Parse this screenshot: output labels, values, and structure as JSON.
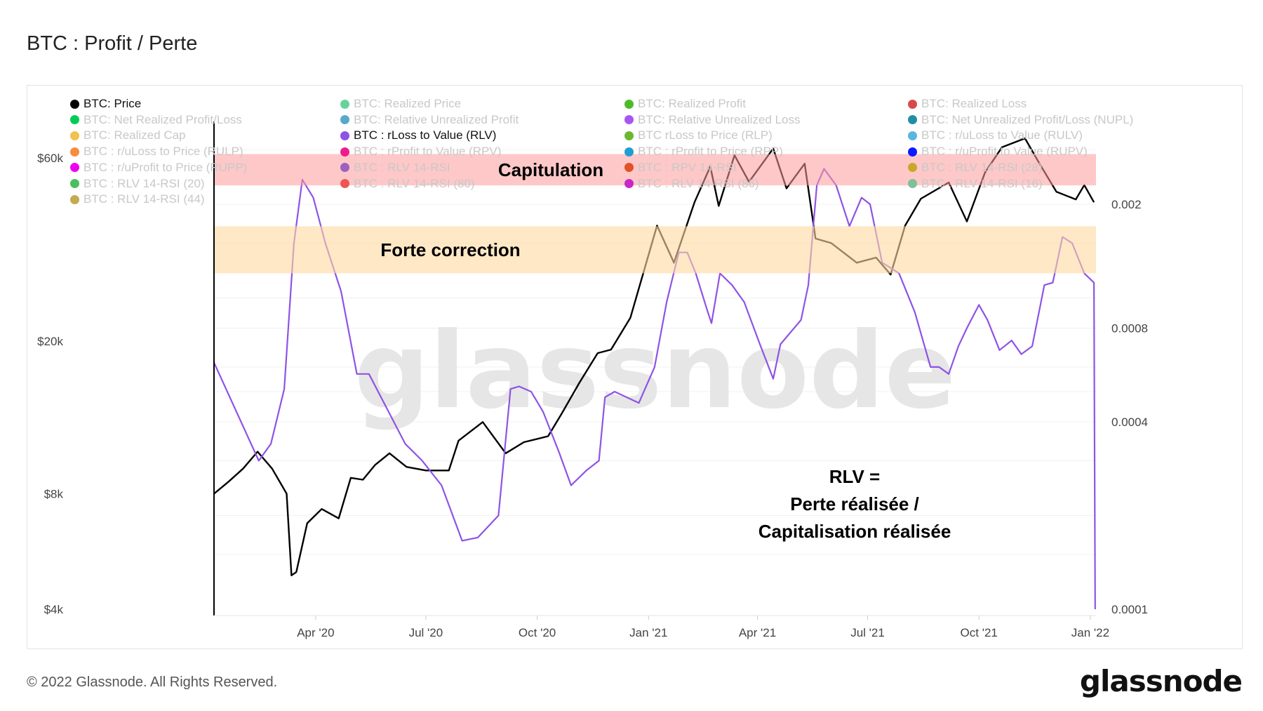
{
  "title": "BTC : Profit / Perte",
  "footer": "© 2022 Glassnode. All Rights Reserved.",
  "logo": "glassnode",
  "watermark": "glassnode",
  "legend": [
    {
      "label": "BTC: Price",
      "color": "#000000",
      "active": true
    },
    {
      "label": "BTC: Net Realized Profit/Loss",
      "color": "#00cc55",
      "active": false
    },
    {
      "label": "BTC: Realized Cap",
      "color": "#f2c14e",
      "active": false
    },
    {
      "label": "BTC : r/uLoss to Price (RULP)",
      "color": "#f78c40",
      "active": false
    },
    {
      "label": "BTC : r/uProfit to Price (RUPP)",
      "color": "#ee00ee",
      "active": false
    },
    {
      "label": "BTC : RLV 14-RSI (20)",
      "color": "#4dbd5f",
      "active": false
    },
    {
      "label": "BTC : RLV 14-RSI (44)",
      "color": "#c4a951",
      "active": false
    },
    {
      "label": "BTC: Realized Price",
      "color": "#66d39e",
      "active": false
    },
    {
      "label": "BTC: Relative Unrealized Profit",
      "color": "#5aa9c9",
      "active": false
    },
    {
      "label": "BTC : rLoss to Value (RLV)",
      "color": "#8e53e6",
      "active": true
    },
    {
      "label": "BTC : rProfit to Value (RPV)",
      "color": "#ee1d8e",
      "active": false
    },
    {
      "label": "BTC : RLV 14-RSI",
      "color": "#9b62c0",
      "active": false
    },
    {
      "label": "BTC : RLV 14-RSI (80)",
      "color": "#ee5555",
      "active": false
    },
    {
      "label": "BTC: Realized Profit",
      "color": "#4cbb2a",
      "active": false
    },
    {
      "label": "BTC: Relative Unrealized Loss",
      "color": "#a757f0",
      "active": false
    },
    {
      "label": "BTC rLoss to Price (RLP)",
      "color": "#6bb82e",
      "active": false
    },
    {
      "label": "BTC : rProfit to Price (RPP)",
      "color": "#209ed4",
      "active": false
    },
    {
      "label": "BTC : RPV 14-RSI",
      "color": "#e0522a",
      "active": false
    },
    {
      "label": "BTC : RLV 14-RSI (86)",
      "color": "#c828c8",
      "active": false
    },
    {
      "label": "BTC: Realized Loss",
      "color": "#d84a4a",
      "active": false
    },
    {
      "label": "BTC: Net Unrealized Profit/Loss (NUPL)",
      "color": "#228ea6",
      "active": false
    },
    {
      "label": "BTC : r/uLoss to Value (RULV)",
      "color": "#58b6e0",
      "active": false
    },
    {
      "label": "BTC : r/uProfit to Value (RUPV)",
      "color": "#0a1cff",
      "active": false
    },
    {
      "label": "BTC : RLV 14-RSI (28)",
      "color": "#c8a82a",
      "active": false
    },
    {
      "label": "BTC : RLV 14-RSI (16)",
      "color": "#7fbf9a",
      "active": false
    }
  ],
  "chart_data": {
    "type": "line",
    "x_range": [
      "2020-01-08",
      "2022-01-05"
    ],
    "x_ticks": [
      {
        "date": "2020-04-01",
        "label": "Apr '20"
      },
      {
        "date": "2020-07-01",
        "label": "Jul '20"
      },
      {
        "date": "2020-10-01",
        "label": "Oct '20"
      },
      {
        "date": "2021-01-01",
        "label": "Jan '21"
      },
      {
        "date": "2021-04-01",
        "label": "Apr '21"
      },
      {
        "date": "2021-07-01",
        "label": "Jul '21"
      },
      {
        "date": "2021-10-01",
        "label": "Oct '21"
      },
      {
        "date": "2022-01-01",
        "label": "Jan '22"
      }
    ],
    "y_left": {
      "scale": "log",
      "range": [
        4000,
        70000
      ],
      "ticks": [
        {
          "v": 4000,
          "label": "$4k"
        },
        {
          "v": 8000,
          "label": "$8k"
        },
        {
          "v": 20000,
          "label": "$20k"
        },
        {
          "v": 60000,
          "label": "$60k"
        }
      ]
    },
    "y_right": {
      "scale": "log",
      "range": [
        0.0001,
        0.0033
      ],
      "ticks": [
        {
          "v": 0.0001,
          "label": "0.0001"
        },
        {
          "v": 0.0004,
          "label": "0.0004"
        },
        {
          "v": 0.0008,
          "label": "0.0008"
        },
        {
          "v": 0.002,
          "label": "0.002"
        }
      ]
    },
    "grid": true,
    "legend_placement": "top-left",
    "series": [
      {
        "name": "BTC: Price",
        "axis": "left",
        "color": "#000000",
        "points": [
          [
            "2020-01-08",
            8000
          ],
          [
            "2020-01-20",
            8600
          ],
          [
            "2020-02-01",
            9300
          ],
          [
            "2020-02-13",
            10300
          ],
          [
            "2020-02-25",
            9300
          ],
          [
            "2020-03-08",
            8000
          ],
          [
            "2020-03-12",
            4900
          ],
          [
            "2020-03-16",
            5000
          ],
          [
            "2020-03-25",
            6700
          ],
          [
            "2020-04-06",
            7300
          ],
          [
            "2020-04-20",
            6900
          ],
          [
            "2020-04-30",
            8800
          ],
          [
            "2020-05-10",
            8700
          ],
          [
            "2020-05-20",
            9500
          ],
          [
            "2020-06-01",
            10200
          ],
          [
            "2020-06-15",
            9400
          ],
          [
            "2020-07-01",
            9200
          ],
          [
            "2020-07-20",
            9200
          ],
          [
            "2020-07-28",
            11000
          ],
          [
            "2020-08-17",
            12300
          ],
          [
            "2020-09-05",
            10200
          ],
          [
            "2020-09-20",
            10900
          ],
          [
            "2020-10-10",
            11300
          ],
          [
            "2020-10-21",
            12900
          ],
          [
            "2020-11-05",
            15600
          ],
          [
            "2020-11-20",
            18600
          ],
          [
            "2020-12-01",
            19000
          ],
          [
            "2020-12-17",
            23000
          ],
          [
            "2021-01-08",
            40000
          ],
          [
            "2021-01-22",
            32000
          ],
          [
            "2021-02-08",
            46000
          ],
          [
            "2021-02-21",
            57000
          ],
          [
            "2021-02-28",
            45000
          ],
          [
            "2021-03-13",
            61000
          ],
          [
            "2021-03-25",
            52000
          ],
          [
            "2021-04-14",
            63500
          ],
          [
            "2021-04-25",
            50000
          ],
          [
            "2021-05-10",
            58000
          ],
          [
            "2021-05-19",
            37000
          ],
          [
            "2021-06-01",
            36000
          ],
          [
            "2021-06-22",
            32000
          ],
          [
            "2021-07-08",
            33000
          ],
          [
            "2021-07-20",
            29800
          ],
          [
            "2021-08-01",
            40000
          ],
          [
            "2021-08-14",
            47000
          ],
          [
            "2021-09-06",
            51800
          ],
          [
            "2021-09-21",
            41000
          ],
          [
            "2021-10-06",
            55000
          ],
          [
            "2021-10-20",
            64000
          ],
          [
            "2021-11-08",
            67500
          ],
          [
            "2021-11-20",
            58000
          ],
          [
            "2021-12-04",
            49000
          ],
          [
            "2021-12-20",
            46800
          ],
          [
            "2021-12-27",
            51000
          ],
          [
            "2022-01-04",
            46000
          ]
        ]
      },
      {
        "name": "BTC : rLoss to Value (RLV)",
        "axis": "right",
        "color": "#8e53e6",
        "points": [
          [
            "2020-01-08",
            0.00062
          ],
          [
            "2020-02-14",
            0.0003
          ],
          [
            "2020-02-24",
            0.00034
          ],
          [
            "2020-03-06",
            0.00051
          ],
          [
            "2020-03-14",
            0.0015
          ],
          [
            "2020-03-21",
            0.0024
          ],
          [
            "2020-03-30",
            0.0021
          ],
          [
            "2020-04-09",
            0.0015
          ],
          [
            "2020-04-22",
            0.00105
          ],
          [
            "2020-05-05",
            0.00057
          ],
          [
            "2020-05-15",
            0.00057
          ],
          [
            "2020-05-25",
            0.00048
          ],
          [
            "2020-06-14",
            0.00034
          ],
          [
            "2020-06-28",
            0.0003
          ],
          [
            "2020-07-14",
            0.00025
          ],
          [
            "2020-07-31",
            0.000166
          ],
          [
            "2020-08-13",
            0.00017
          ],
          [
            "2020-08-30",
            0.0002
          ],
          [
            "2020-09-09",
            0.00051
          ],
          [
            "2020-09-16",
            0.00052
          ],
          [
            "2020-09-26",
            0.0005
          ],
          [
            "2020-10-06",
            0.00043
          ],
          [
            "2020-10-19",
            0.00032
          ],
          [
            "2020-10-29",
            0.00025
          ],
          [
            "2020-11-11",
            0.00028
          ],
          [
            "2020-11-21",
            0.0003
          ],
          [
            "2020-11-26",
            0.00048
          ],
          [
            "2020-12-04",
            0.0005
          ],
          [
            "2020-12-24",
            0.00046
          ],
          [
            "2021-01-06",
            0.0006
          ],
          [
            "2021-01-16",
            0.00097
          ],
          [
            "2021-01-26",
            0.0014
          ],
          [
            "2021-02-02",
            0.0014
          ],
          [
            "2021-02-09",
            0.0012
          ],
          [
            "2021-02-19",
            0.0009
          ],
          [
            "2021-02-22",
            0.00083
          ],
          [
            "2021-03-01",
            0.0012
          ],
          [
            "2021-03-11",
            0.0011
          ],
          [
            "2021-03-21",
            0.00097
          ],
          [
            "2021-04-03",
            0.00071
          ],
          [
            "2021-04-14",
            0.00055
          ],
          [
            "2021-04-20",
            0.00071
          ],
          [
            "2021-05-07",
            0.00085
          ],
          [
            "2021-05-13",
            0.0011
          ],
          [
            "2021-05-20",
            0.0023
          ],
          [
            "2021-05-26",
            0.0026
          ],
          [
            "2021-06-05",
            0.0023
          ],
          [
            "2021-06-16",
            0.0017
          ],
          [
            "2021-06-26",
            0.0021
          ],
          [
            "2021-07-03",
            0.002
          ],
          [
            "2021-07-13",
            0.0013
          ],
          [
            "2021-07-27",
            0.0012
          ],
          [
            "2021-08-09",
            0.0009
          ],
          [
            "2021-08-22",
            0.0006
          ],
          [
            "2021-08-29",
            0.0006
          ],
          [
            "2021-09-06",
            0.00057
          ],
          [
            "2021-09-14",
            0.0007
          ],
          [
            "2021-09-21",
            0.0008
          ],
          [
            "2021-10-01",
            0.00095
          ],
          [
            "2021-10-08",
            0.00085
          ],
          [
            "2021-10-18",
            0.00068
          ],
          [
            "2021-10-28",
            0.00073
          ],
          [
            "2021-11-05",
            0.00066
          ],
          [
            "2021-11-14",
            0.0007
          ],
          [
            "2021-11-24",
            0.0011
          ],
          [
            "2021-12-01",
            0.00112
          ],
          [
            "2021-12-09",
            0.00157
          ],
          [
            "2021-12-17",
            0.0015
          ],
          [
            "2021-12-27",
            0.0012
          ],
          [
            "2022-01-04",
            0.00112
          ],
          [
            "2022-01-05",
            0.0001
          ]
        ]
      }
    ],
    "bands": [
      {
        "label": "Capitulation",
        "axis": "right",
        "range": [
          0.0023,
          0.0029
        ],
        "color": "#ff9a9a"
      },
      {
        "label": "Forte correction",
        "axis": "right",
        "range": [
          0.0012,
          0.0017
        ],
        "color": "#ffd9a0"
      }
    ],
    "annotation": [
      "RLV =",
      "Perte réalisée /",
      "Capitalisation réalisée"
    ]
  }
}
